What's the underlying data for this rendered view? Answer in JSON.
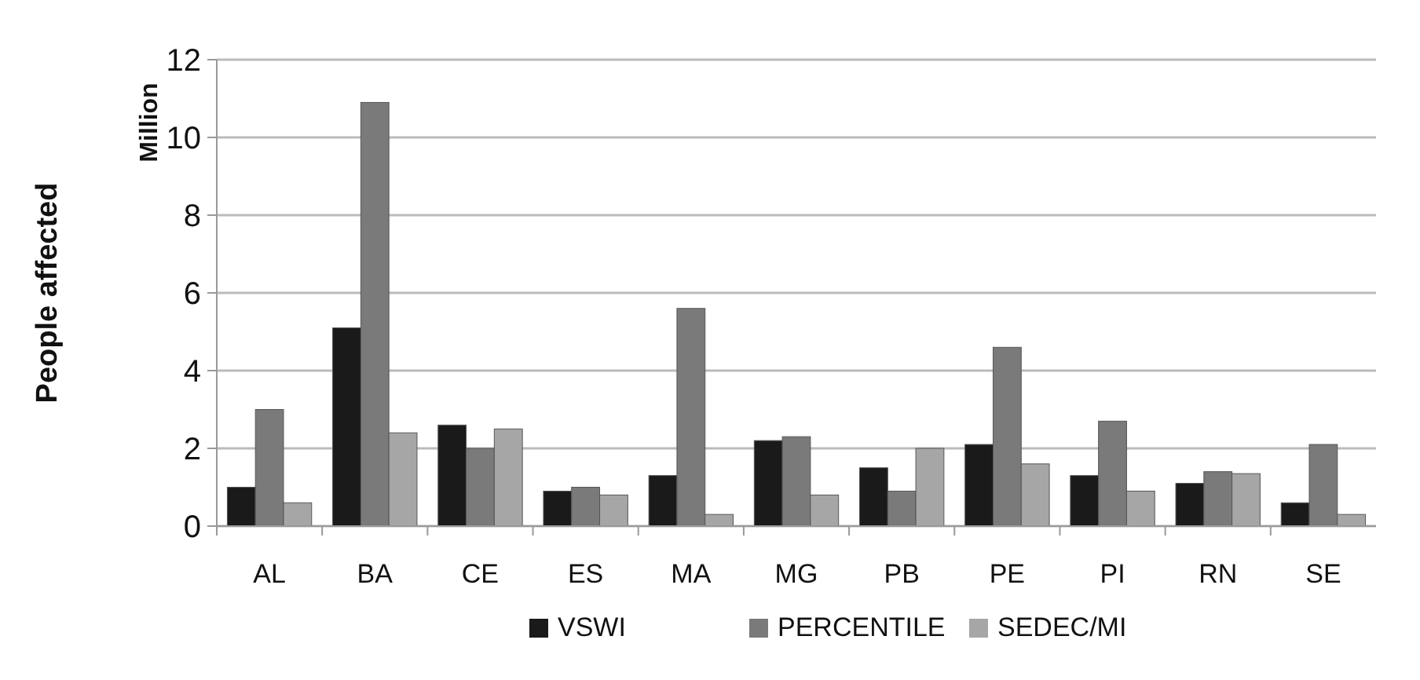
{
  "chart_data": {
    "type": "bar",
    "ylabel": "People affected",
    "annotations": [
      "Million"
    ],
    "categories": [
      "AL",
      "BA",
      "CE",
      "ES",
      "MA",
      "MG",
      "PB",
      "PE",
      "PI",
      "RN",
      "SE"
    ],
    "series": [
      {
        "name": "VSWI",
        "color": "#1a1a1a",
        "values": [
          1.0,
          5.1,
          2.6,
          0.9,
          1.3,
          2.2,
          1.5,
          2.1,
          1.3,
          1.1,
          0.6
        ]
      },
      {
        "name": "PERCENTILE",
        "color": "#7a7a7a",
        "values": [
          3.0,
          10.9,
          2.0,
          1.0,
          5.6,
          2.3,
          0.9,
          4.6,
          2.7,
          1.4,
          2.1
        ]
      },
      {
        "name": "SEDEC/MI",
        "color": "#a6a6a6",
        "values": [
          0.6,
          2.4,
          2.5,
          0.8,
          0.3,
          0.8,
          2.0,
          1.6,
          0.9,
          1.35,
          0.3
        ]
      }
    ],
    "ylim": [
      0,
      12
    ],
    "yticks": [
      0,
      2,
      4,
      6,
      8,
      10,
      12
    ],
    "grid": "y",
    "legend": "bottom"
  }
}
